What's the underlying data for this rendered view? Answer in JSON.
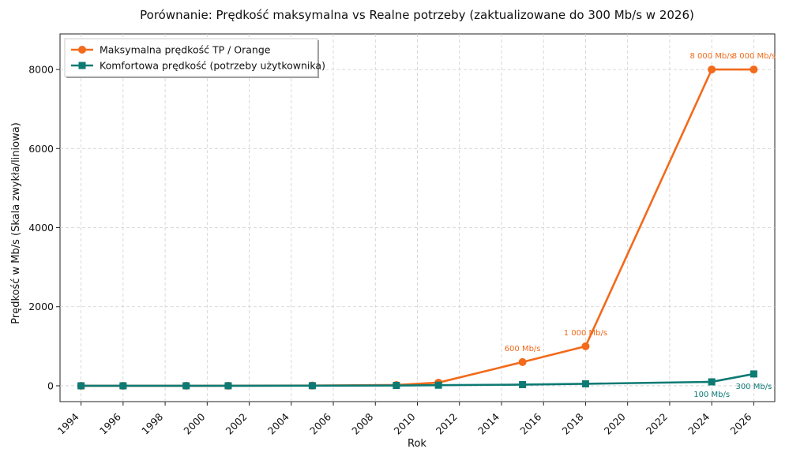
{
  "chart_data": {
    "type": "line",
    "title": "Porównanie: Prędkość maksymalna vs Realne potrzeby (zaktualizowane do 300 Mb/s w 2026)",
    "xlabel": "Rok",
    "ylabel": "Prędkość w Mb/s (Skala zwykła/liniowa)",
    "xlim": [
      1993.0,
      2027.0
    ],
    "ylim": [
      -400,
      8900
    ],
    "xticks": [
      1994,
      1996,
      1998,
      2000,
      2002,
      2004,
      2006,
      2008,
      2010,
      2012,
      2014,
      2016,
      2018,
      2020,
      2022,
      2024,
      2026
    ],
    "yticks": [
      0,
      2000,
      4000,
      6000,
      8000
    ],
    "grid": true,
    "legend_position": "top-left",
    "series": [
      {
        "name": "Maksymalna prędkość TP / Orange",
        "color": "#f26a1b",
        "marker": "circle",
        "points": [
          {
            "x": 1994,
            "y": 0.02
          },
          {
            "x": 1996,
            "y": 0.05
          },
          {
            "x": 1999,
            "y": 1
          },
          {
            "x": 2001,
            "y": 2
          },
          {
            "x": 2005,
            "y": 6
          },
          {
            "x": 2009,
            "y": 20
          },
          {
            "x": 2011,
            "y": 80
          },
          {
            "x": 2015,
            "y": 600
          },
          {
            "x": 2018,
            "y": 1000
          },
          {
            "x": 2024,
            "y": 8000
          },
          {
            "x": 2026,
            "y": 8000
          }
        ]
      },
      {
        "name": "Komfortowa prędkość (potrzeby użytkownika)",
        "color": "#0e7a74",
        "marker": "square",
        "points": [
          {
            "x": 1994,
            "y": 0.01
          },
          {
            "x": 1996,
            "y": 0.02
          },
          {
            "x": 1999,
            "y": 0.5
          },
          {
            "x": 2001,
            "y": 1
          },
          {
            "x": 2005,
            "y": 3
          },
          {
            "x": 2009,
            "y": 8
          },
          {
            "x": 2011,
            "y": 15
          },
          {
            "x": 2015,
            "y": 30
          },
          {
            "x": 2018,
            "y": 50
          },
          {
            "x": 2024,
            "y": 100
          },
          {
            "x": 2026,
            "y": 300
          }
        ]
      }
    ],
    "annotations": [
      {
        "text": "600 Mb/s",
        "x": 2015,
        "y": 600,
        "series": 0,
        "position": "above"
      },
      {
        "text": "1 000 Mb/s",
        "x": 2018,
        "y": 1000,
        "series": 0,
        "position": "above"
      },
      {
        "text": "8 000 Mb/s",
        "x": 2024,
        "y": 8000,
        "series": 0,
        "position": "above"
      },
      {
        "text": "8 000 Mb/s",
        "x": 2026,
        "y": 8000,
        "series": 0,
        "position": "above"
      },
      {
        "text": "100 Mb/s",
        "x": 2024,
        "y": 100,
        "series": 1,
        "position": "below"
      },
      {
        "text": "300 Mb/s",
        "x": 2026,
        "y": 300,
        "series": 1,
        "position": "below"
      }
    ]
  }
}
